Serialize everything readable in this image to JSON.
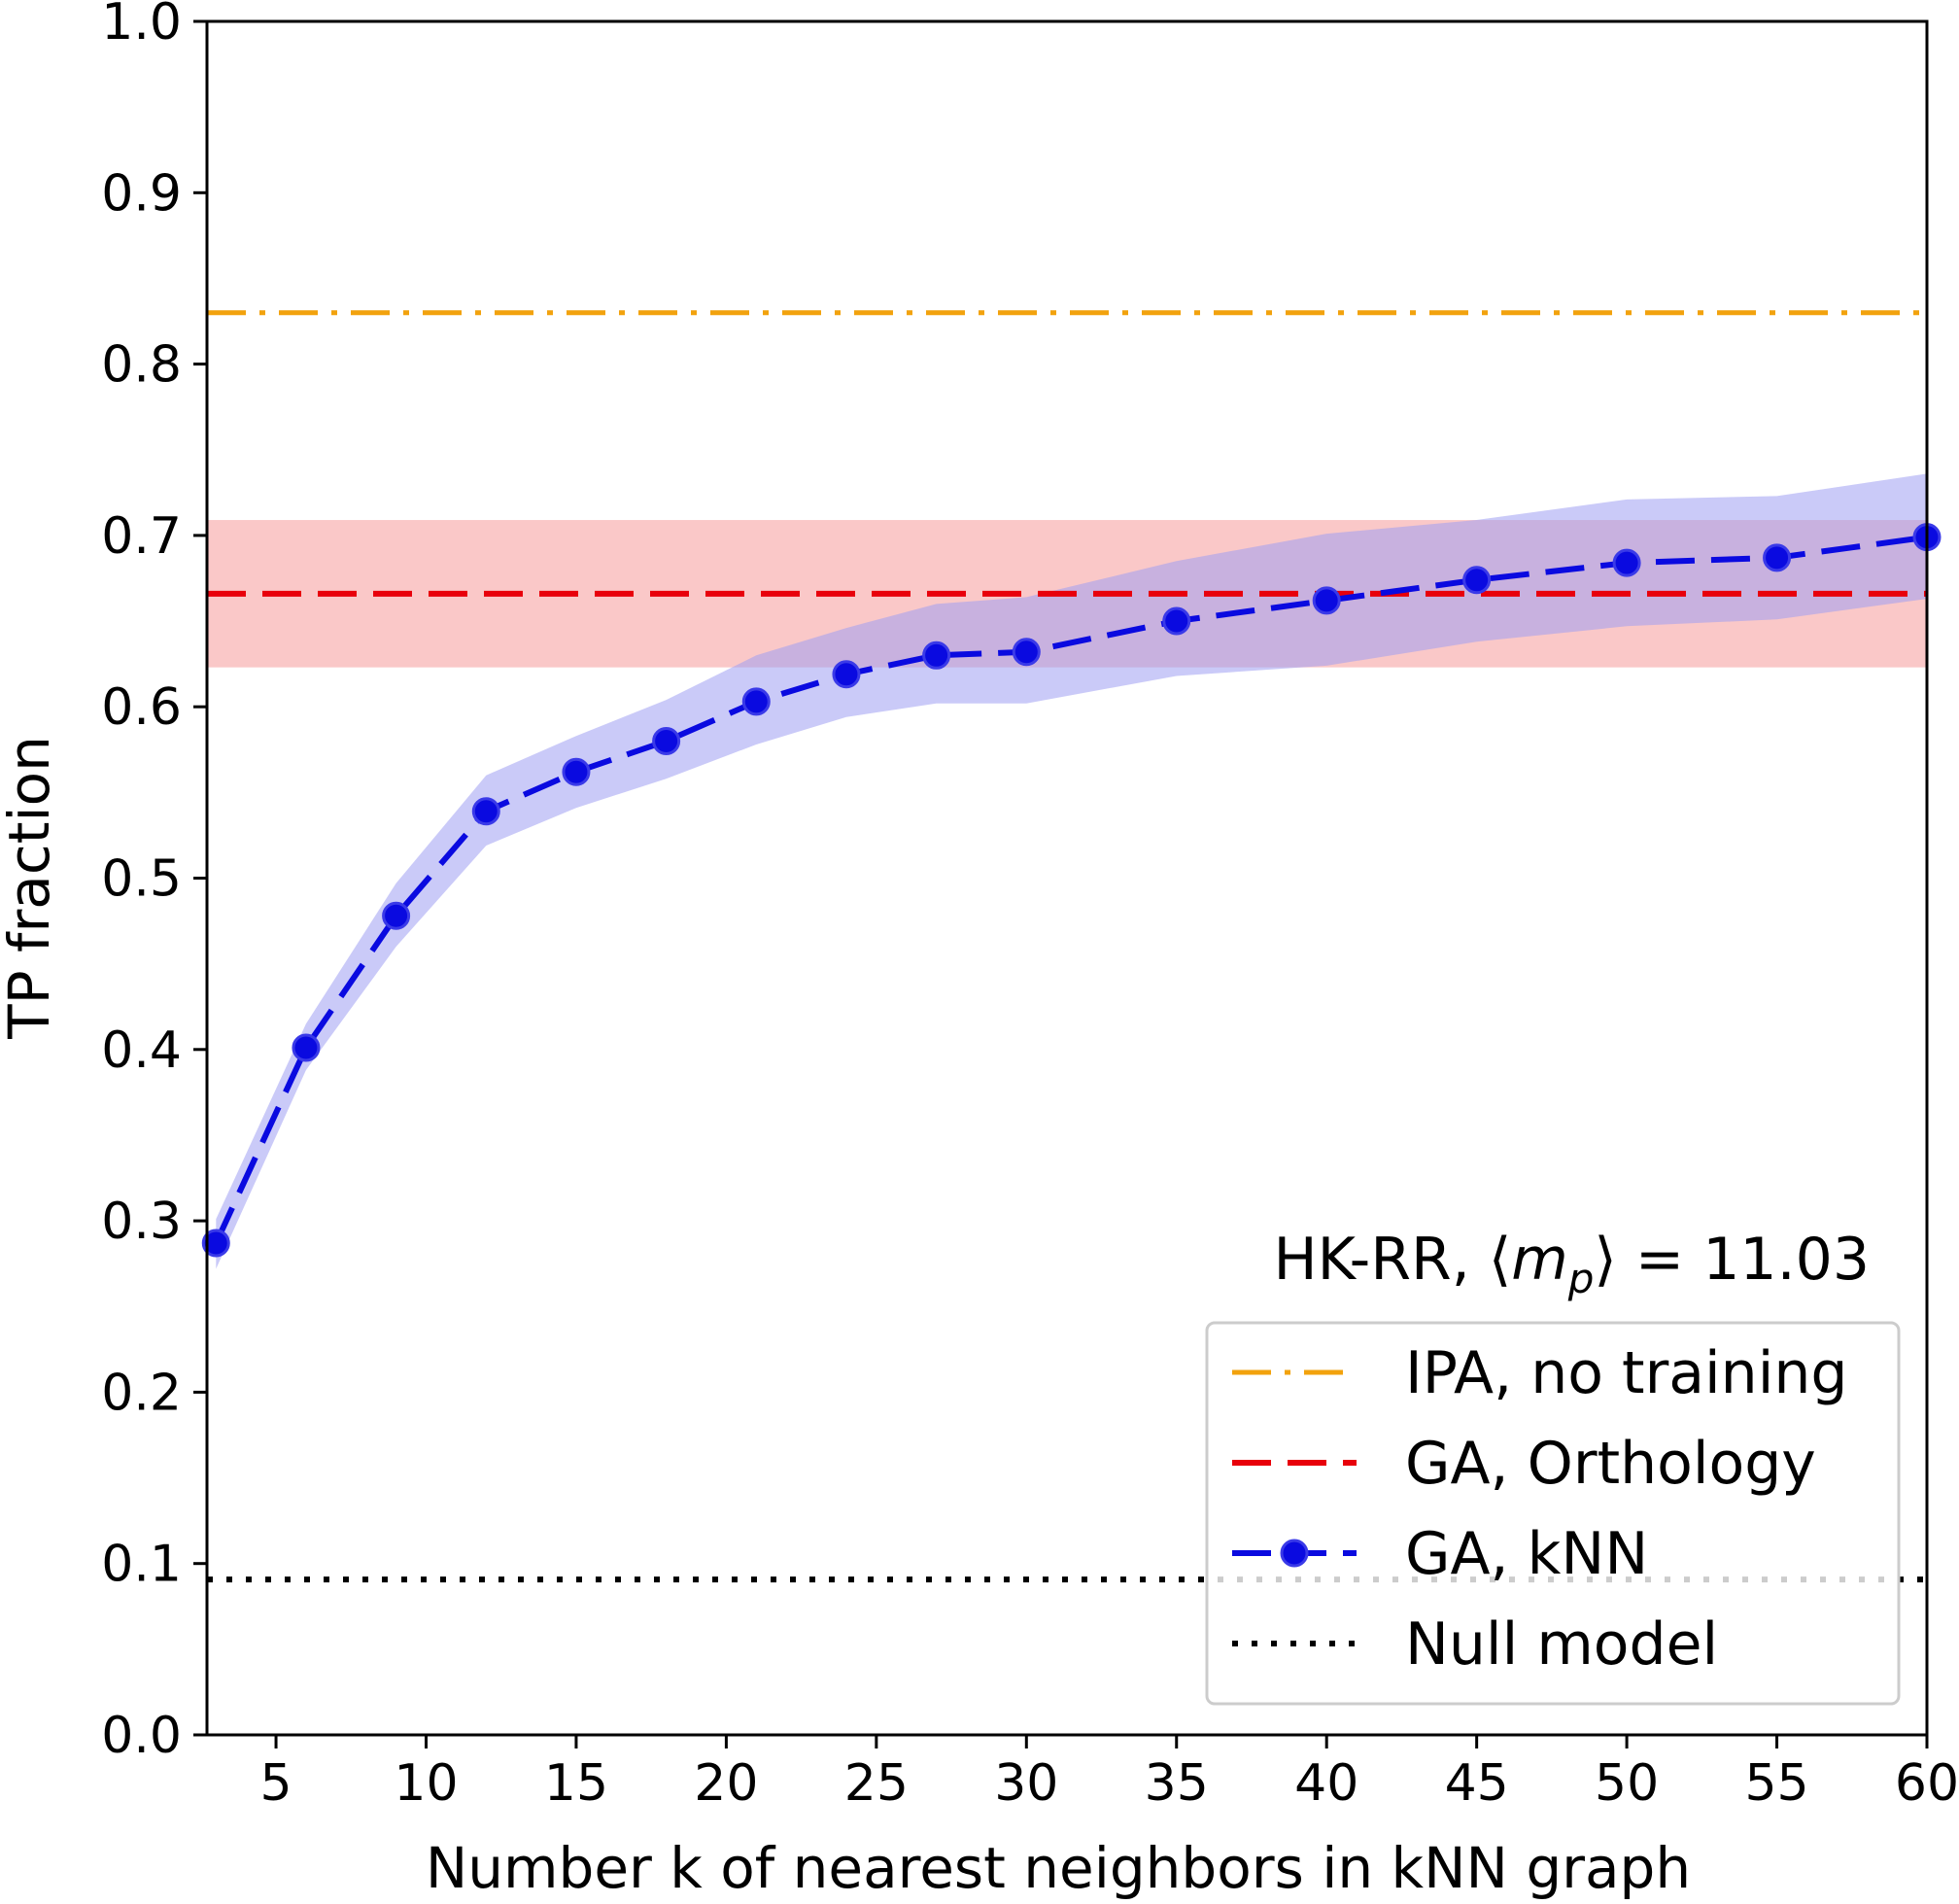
{
  "chart_data": {
    "type": "line",
    "xlabel": "Number k of nearest neighbors in kNN graph",
    "ylabel": "TP fraction",
    "xlim": [
      2.7,
      60
    ],
    "ylim": [
      0.0,
      1.0
    ],
    "xticks": [
      "5",
      "10",
      "15",
      "20",
      "25",
      "30",
      "35",
      "40",
      "45",
      "50",
      "55",
      "60"
    ],
    "yticks": [
      "0.0",
      "0.1",
      "0.2",
      "0.3",
      "0.4",
      "0.5",
      "0.6",
      "0.7",
      "0.8",
      "0.9",
      "1.0"
    ],
    "annotation": {
      "pre": "HK-RR, ",
      "lang": "⟨",
      "m": "m",
      "sub": "p",
      "rang": "⟩",
      "post": " = 11.03"
    },
    "legend_position": "lower right",
    "series": [
      {
        "name": "IPA, no training",
        "style": "dash-dot",
        "color": "#f2a20d",
        "y": 0.83
      },
      {
        "name": "GA, Orthology",
        "style": "dashed",
        "color": "#e8000b",
        "y": 0.666,
        "band": [
          0.623,
          0.709
        ],
        "band_color": "#f7a7a7"
      },
      {
        "name": "GA, kNN",
        "style": "dashed-markers",
        "color": "#0a0ae0",
        "band_color": "#9f9ff2",
        "x": [
          3,
          6,
          9,
          12,
          15,
          18,
          21,
          24,
          27,
          30,
          35,
          40,
          45,
          50,
          55,
          60
        ],
        "y": [
          0.287,
          0.401,
          0.478,
          0.539,
          0.562,
          0.58,
          0.603,
          0.619,
          0.63,
          0.632,
          0.65,
          0.662,
          0.674,
          0.684,
          0.687,
          0.699
        ],
        "lower": [
          0.272,
          0.388,
          0.46,
          0.519,
          0.541,
          0.558,
          0.578,
          0.594,
          0.602,
          0.602,
          0.618,
          0.624,
          0.638,
          0.647,
          0.651,
          0.663
        ],
        "upper": [
          0.301,
          0.415,
          0.497,
          0.56,
          0.583,
          0.604,
          0.63,
          0.646,
          0.66,
          0.664,
          0.685,
          0.701,
          0.709,
          0.721,
          0.723,
          0.736
        ]
      },
      {
        "name": "Null model",
        "style": "dotted",
        "color": "#000000",
        "y": 0.0907
      }
    ]
  }
}
